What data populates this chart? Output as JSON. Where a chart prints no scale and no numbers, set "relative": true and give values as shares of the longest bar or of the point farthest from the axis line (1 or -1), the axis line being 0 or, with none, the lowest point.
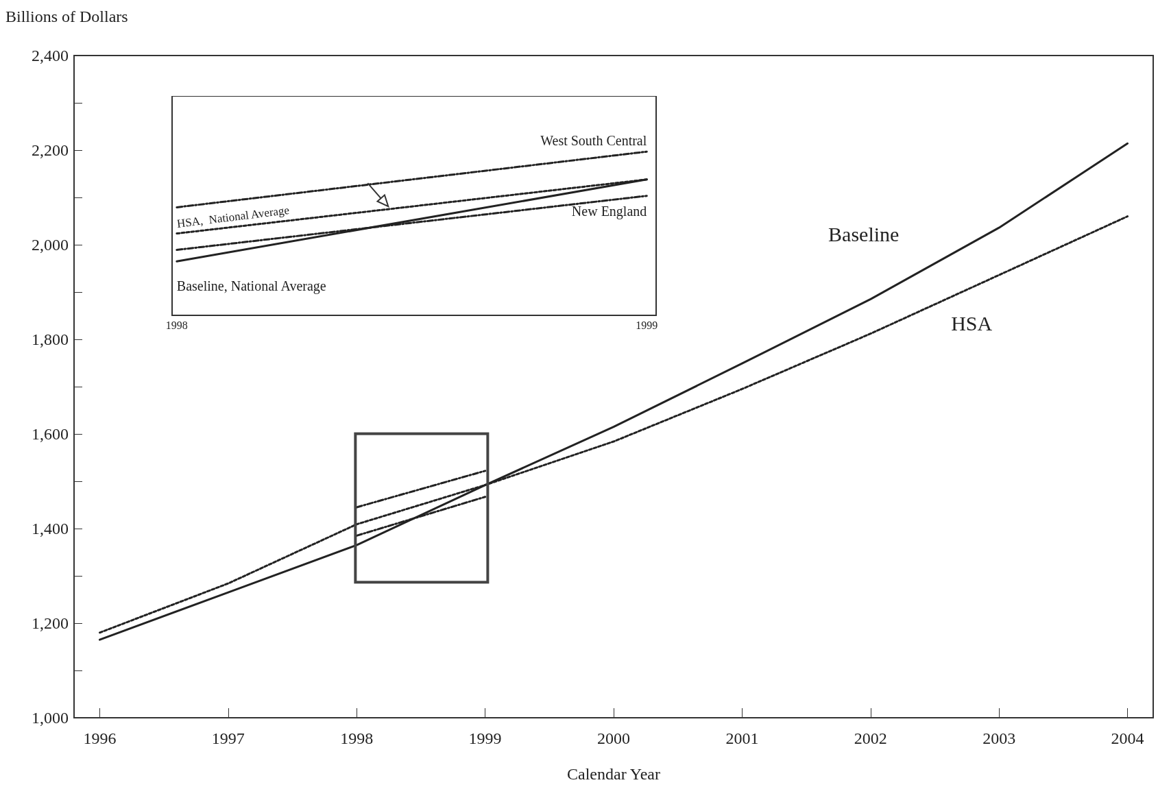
{
  "chart_data": [
    {
      "type": "line",
      "ylabel": "Billions of Dollars",
      "xlabel": "Calendar Year",
      "x": [
        1996,
        1997,
        1998,
        1999,
        2000,
        2001,
        2002,
        2003,
        2004
      ],
      "series": [
        {
          "name": "Baseline",
          "color": "#222222",
          "line_style": "solid",
          "values": [
            1165,
            1265,
            1365,
            1492,
            1615,
            1749,
            1885,
            2036,
            2214
          ]
        },
        {
          "name": "HSA",
          "color": "#222222",
          "line_style": "dotted",
          "values": [
            1180,
            1284,
            1409,
            1492,
            1584,
            1695,
            1812,
            1936,
            2060
          ]
        },
        {
          "color": "#222222",
          "line_style": "dashed",
          "values": [
            null,
            null,
            1445,
            1522,
            null,
            null,
            null,
            null,
            null
          ]
        },
        {
          "color": "#222222",
          "line_style": "dashed",
          "values": [
            null,
            null,
            1385,
            1467,
            null,
            null,
            null,
            null,
            null
          ]
        }
      ],
      "xlim": [
        1995.8,
        2004.2
      ],
      "ylim": [
        1000,
        2400
      ],
      "xticks": [
        1996,
        1997,
        1998,
        1999,
        2000,
        2001,
        2002,
        2003,
        2004
      ],
      "yticks": [
        {
          "value": 1000,
          "label": "1,000"
        },
        {
          "value": 1100,
          "label": null
        },
        {
          "value": 1200,
          "label": "1,200"
        },
        {
          "value": 1300,
          "label": null
        },
        {
          "value": 1400,
          "label": "1,400"
        },
        {
          "value": 1500,
          "label": null
        },
        {
          "value": 1600,
          "label": "1,600"
        },
        {
          "value": 1700,
          "label": null
        },
        {
          "value": 1800,
          "label": "1,800"
        },
        {
          "value": 1900,
          "label": null
        },
        {
          "value": 2000,
          "label": "2,000"
        },
        {
          "value": 2100,
          "label": null
        },
        {
          "value": 2200,
          "label": "2,200"
        },
        {
          "value": 2300,
          "label": null
        },
        {
          "value": 2400,
          "label": "2,400"
        }
      ],
      "legend": false,
      "grid": false,
      "marker": "none"
    },
    {
      "type": "line",
      "x": [
        1998,
        1999
      ],
      "series": [
        {
          "name": "Baseline, National Average",
          "color": "#222222",
          "line_style": "solid",
          "values": [
            0.33,
            0.83
          ]
        },
        {
          "name": "HSA,  National Average",
          "color": "#222222",
          "line_style": "dotted",
          "values": [
            0.5,
            0.83
          ]
        },
        {
          "name": "West South Central",
          "color": "#222222",
          "line_style": "dashed",
          "values": [
            0.66,
            1
          ]
        },
        {
          "name": "New England",
          "color": "#222222",
          "line_style": "dashed",
          "values": [
            0.4,
            0.73
          ]
        }
      ],
      "relative": true,
      "xlim": [
        1997.99,
        1999.02
      ],
      "xticks": [
        1998,
        1999
      ],
      "legend": false,
      "grid": false,
      "marker": "none"
    }
  ]
}
